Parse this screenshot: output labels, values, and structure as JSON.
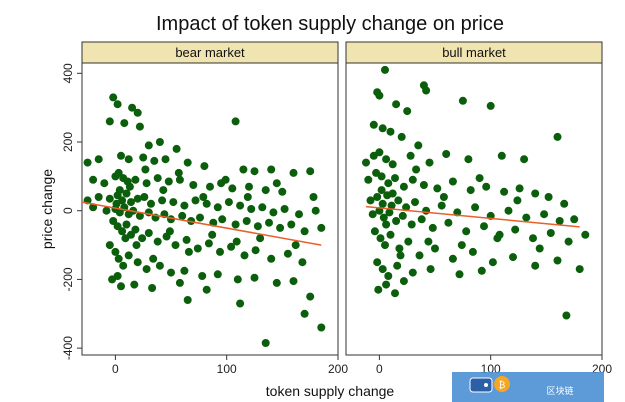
{
  "chart_data": {
    "type": "scatter",
    "title": "Impact of token supply change on price",
    "xlabel": "token supply change",
    "ylabel": "price change",
    "xlim": [
      -30,
      200
    ],
    "ylim": [
      -420,
      430
    ],
    "xticks": [
      0,
      100,
      200
    ],
    "yticks": [
      -400,
      -200,
      0,
      200,
      400
    ],
    "grid": false,
    "legend": "none",
    "panels": [
      {
        "label": "bear market",
        "points": [
          [
            -2,
            330
          ],
          [
            2,
            310
          ],
          [
            15,
            300
          ],
          [
            20,
            285
          ],
          [
            -5,
            260
          ],
          [
            8,
            255
          ],
          [
            22,
            245
          ],
          [
            108,
            260
          ],
          [
            30,
            190
          ],
          [
            40,
            200
          ],
          [
            55,
            180
          ],
          [
            -15,
            150
          ],
          [
            -25,
            140
          ],
          [
            5,
            160
          ],
          [
            12,
            150
          ],
          [
            25,
            155
          ],
          [
            35,
            145
          ],
          [
            45,
            150
          ],
          [
            65,
            140
          ],
          [
            80,
            130
          ],
          [
            115,
            120
          ],
          [
            125,
            115
          ],
          [
            140,
            120
          ],
          [
            160,
            110
          ],
          [
            175,
            115
          ],
          [
            -20,
            90
          ],
          [
            -10,
            80
          ],
          [
            0,
            100
          ],
          [
            3,
            110
          ],
          [
            7,
            95
          ],
          [
            11,
            85
          ],
          [
            18,
            90
          ],
          [
            28,
            80
          ],
          [
            38,
            95
          ],
          [
            48,
            85
          ],
          [
            58,
            90
          ],
          [
            70,
            75
          ],
          [
            85,
            70
          ],
          [
            95,
            80
          ],
          [
            105,
            65
          ],
          [
            120,
            70
          ],
          [
            135,
            60
          ],
          [
            150,
            55
          ],
          [
            -25,
            30
          ],
          [
            -15,
            40
          ],
          [
            -5,
            35
          ],
          [
            2,
            45
          ],
          [
            6,
            30
          ],
          [
            10,
            50
          ],
          [
            14,
            25
          ],
          [
            20,
            35
          ],
          [
            26,
            40
          ],
          [
            32,
            20
          ],
          [
            42,
            30
          ],
          [
            52,
            25
          ],
          [
            62,
            15
          ],
          [
            72,
            30
          ],
          [
            82,
            20
          ],
          [
            92,
            10
          ],
          [
            102,
            25
          ],
          [
            112,
            15
          ],
          [
            122,
            5
          ],
          [
            132,
            10
          ],
          [
            142,
            -5
          ],
          [
            152,
            5
          ],
          [
            165,
            -10
          ],
          [
            180,
            0
          ],
          [
            -20,
            10
          ],
          [
            -8,
            0
          ],
          [
            0,
            5
          ],
          [
            4,
            -5
          ],
          [
            8,
            10
          ],
          [
            12,
            -10
          ],
          [
            16,
            0
          ],
          [
            22,
            -15
          ],
          [
            30,
            -5
          ],
          [
            36,
            -20
          ],
          [
            44,
            -10
          ],
          [
            50,
            -25
          ],
          [
            60,
            -15
          ],
          [
            68,
            -30
          ],
          [
            76,
            -20
          ],
          [
            88,
            -35
          ],
          [
            96,
            -25
          ],
          [
            108,
            -40
          ],
          [
            118,
            -30
          ],
          [
            128,
            -45
          ],
          [
            138,
            -35
          ],
          [
            148,
            -50
          ],
          [
            158,
            -40
          ],
          [
            170,
            -60
          ],
          [
            185,
            -50
          ],
          [
            -2,
            -30
          ],
          [
            2,
            -45
          ],
          [
            6,
            -60
          ],
          [
            10,
            -40
          ],
          [
            14,
            -70
          ],
          [
            18,
            -55
          ],
          [
            24,
            -80
          ],
          [
            30,
            -65
          ],
          [
            38,
            -90
          ],
          [
            46,
            -75
          ],
          [
            54,
            -100
          ],
          [
            64,
            -85
          ],
          [
            74,
            -110
          ],
          [
            84,
            -95
          ],
          [
            94,
            -120
          ],
          [
            104,
            -105
          ],
          [
            116,
            -130
          ],
          [
            126,
            -115
          ],
          [
            140,
            -140
          ],
          [
            155,
            -125
          ],
          [
            168,
            -150
          ],
          [
            -5,
            -100
          ],
          [
            0,
            -120
          ],
          [
            3,
            -140
          ],
          [
            7,
            -160
          ],
          [
            12,
            -130
          ],
          [
            20,
            -150
          ],
          [
            28,
            -170
          ],
          [
            40,
            -160
          ],
          [
            50,
            -180
          ],
          [
            62,
            -175
          ],
          [
            78,
            -190
          ],
          [
            92,
            -185
          ],
          [
            110,
            -200
          ],
          [
            125,
            -195
          ],
          [
            145,
            -210
          ],
          [
            160,
            -205
          ],
          [
            175,
            -250
          ],
          [
            -3,
            -200
          ],
          [
            2,
            -190
          ],
          [
            5,
            -220
          ],
          [
            17,
            -215
          ],
          [
            33,
            -225
          ],
          [
            58,
            -210
          ],
          [
            82,
            -230
          ],
          [
            112,
            -270
          ],
          [
            65,
            -260
          ],
          [
            135,
            -385
          ],
          [
            185,
            -340
          ],
          [
            170,
            -300
          ],
          [
            1,
            20
          ],
          [
            4,
            60
          ],
          [
            9,
            -80
          ],
          [
            13,
            70
          ],
          [
            19,
            -100
          ],
          [
            27,
            120
          ],
          [
            34,
            -140
          ],
          [
            43,
            60
          ],
          [
            49,
            -60
          ],
          [
            57,
            110
          ],
          [
            66,
            -120
          ],
          [
            79,
            40
          ],
          [
            87,
            -70
          ],
          [
            99,
            90
          ],
          [
            109,
            -90
          ],
          [
            119,
            40
          ],
          [
            130,
            -80
          ],
          [
            145,
            80
          ],
          [
            162,
            -100
          ],
          [
            178,
            40
          ]
        ],
        "fit": {
          "x": [
            -30,
            185
          ],
          "y": [
            25,
            -100
          ]
        }
      },
      {
        "label": "bull market",
        "points": [
          [
            5,
            410
          ],
          [
            -2,
            345
          ],
          [
            0,
            335
          ],
          [
            15,
            310
          ],
          [
            25,
            290
          ],
          [
            40,
            365
          ],
          [
            42,
            350
          ],
          [
            75,
            320
          ],
          [
            100,
            305
          ],
          [
            -5,
            250
          ],
          [
            3,
            240
          ],
          [
            10,
            230
          ],
          [
            20,
            215
          ],
          [
            35,
            190
          ],
          [
            160,
            215
          ],
          [
            -12,
            140
          ],
          [
            -5,
            160
          ],
          [
            0,
            170
          ],
          [
            6,
            150
          ],
          [
            12,
            135
          ],
          [
            28,
            160
          ],
          [
            45,
            140
          ],
          [
            60,
            165
          ],
          [
            80,
            150
          ],
          [
            110,
            160
          ],
          [
            130,
            150
          ],
          [
            -10,
            90
          ],
          [
            -3,
            110
          ],
          [
            2,
            100
          ],
          [
            8,
            80
          ],
          [
            14,
            95
          ],
          [
            22,
            70
          ],
          [
            30,
            90
          ],
          [
            40,
            75
          ],
          [
            52,
            65
          ],
          [
            66,
            85
          ],
          [
            82,
            60
          ],
          [
            96,
            70
          ],
          [
            112,
            55
          ],
          [
            126,
            65
          ],
          [
            140,
            50
          ],
          [
            152,
            40
          ],
          [
            -8,
            30
          ],
          [
            -2,
            40
          ],
          [
            3,
            20
          ],
          [
            7,
            45
          ],
          [
            11,
            15
          ],
          [
            17,
            30
          ],
          [
            24,
            10
          ],
          [
            32,
            25
          ],
          [
            42,
            0
          ],
          [
            56,
            15
          ],
          [
            70,
            -5
          ],
          [
            86,
            10
          ],
          [
            100,
            -15
          ],
          [
            116,
            0
          ],
          [
            132,
            -20
          ],
          [
            148,
            -10
          ],
          [
            162,
            -30
          ],
          [
            175,
            -25
          ],
          [
            -6,
            -10
          ],
          [
            0,
            0
          ],
          [
            4,
            -20
          ],
          [
            9,
            -5
          ],
          [
            15,
            -30
          ],
          [
            21,
            -15
          ],
          [
            29,
            -40
          ],
          [
            38,
            -25
          ],
          [
            48,
            -50
          ],
          [
            62,
            -35
          ],
          [
            78,
            -60
          ],
          [
            94,
            -45
          ],
          [
            108,
            -70
          ],
          [
            122,
            -55
          ],
          [
            138,
            -80
          ],
          [
            154,
            -65
          ],
          [
            170,
            -90
          ],
          [
            185,
            -70
          ],
          [
            -4,
            -60
          ],
          [
            1,
            -80
          ],
          [
            5,
            -100
          ],
          [
            10,
            -70
          ],
          [
            18,
            -110
          ],
          [
            26,
            -90
          ],
          [
            36,
            -130
          ],
          [
            50,
            -110
          ],
          [
            66,
            -140
          ],
          [
            84,
            -120
          ],
          [
            102,
            -150
          ],
          [
            120,
            -135
          ],
          [
            140,
            -160
          ],
          [
            160,
            -145
          ],
          [
            180,
            -170
          ],
          [
            -2,
            -150
          ],
          [
            3,
            -170
          ],
          [
            8,
            -190
          ],
          [
            16,
            -160
          ],
          [
            30,
            -180
          ],
          [
            46,
            -170
          ],
          [
            72,
            -185
          ],
          [
            92,
            -175
          ],
          [
            -1,
            -230
          ],
          [
            6,
            -215
          ],
          [
            14,
            -240
          ],
          [
            22,
            -205
          ],
          [
            168,
            -305
          ],
          [
            2,
            60
          ],
          [
            6,
            -40
          ],
          [
            12,
            50
          ],
          [
            19,
            -130
          ],
          [
            33,
            120
          ],
          [
            44,
            -90
          ],
          [
            58,
            40
          ],
          [
            74,
            -100
          ],
          [
            90,
            95
          ],
          [
            106,
            -80
          ],
          [
            124,
            30
          ],
          [
            144,
            -110
          ],
          [
            166,
            20
          ]
        ],
        "fit": {
          "x": [
            -12,
            180
          ],
          "y": [
            12,
            -47
          ]
        }
      }
    ]
  },
  "colors": {
    "point": "#0b5e0b",
    "fit_line": "#e8602c",
    "strip_bg": "#f0e4b0",
    "axis": "#333333"
  },
  "watermark": {
    "text": "区块链",
    "icons": [
      "wallet-icon",
      "bitcoin-icon"
    ]
  }
}
